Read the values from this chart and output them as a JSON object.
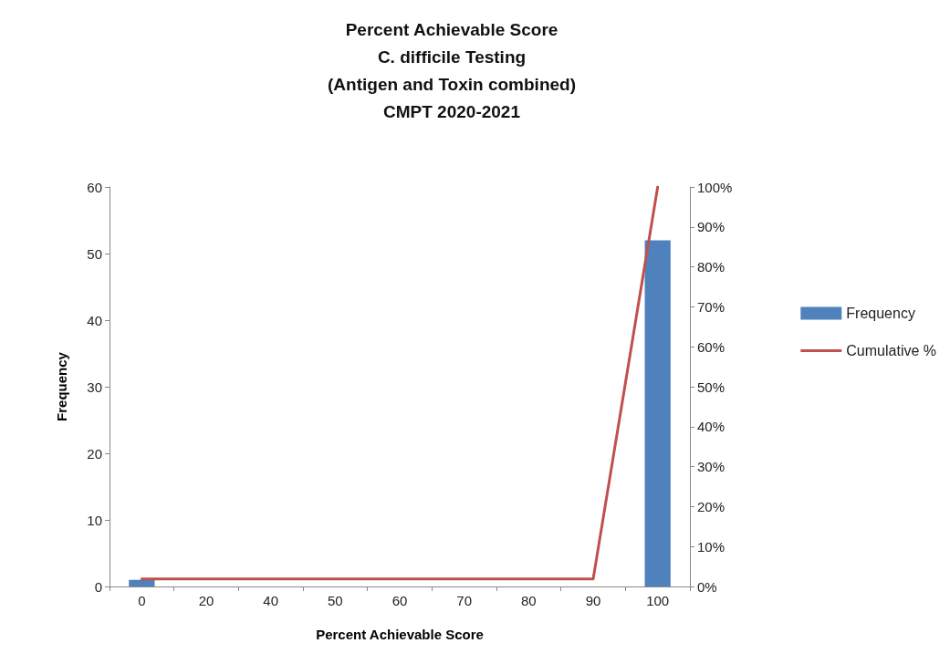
{
  "chart_data": {
    "type": "bar",
    "title": "Percent Achievable Score\nC. difficile Testing\n(Antigen and Toxin combined)\nCMPT 2020-2021",
    "xlabel": "Percent Achievable Score",
    "ylabel": "Frequency",
    "categories": [
      "0",
      "20",
      "40",
      "50",
      "60",
      "70",
      "80",
      "90",
      "100"
    ],
    "series": [
      {
        "name": "Frequency",
        "color": "#4f81bd",
        "values": [
          1,
          0,
          0,
          0,
          0,
          0,
          0,
          0,
          52
        ]
      },
      {
        "name": "Cumulative %",
        "type": "line",
        "axis": "y2",
        "color": "#c0504d",
        "values": [
          1.9,
          1.9,
          1.9,
          1.9,
          1.9,
          1.9,
          1.9,
          1.9,
          100
        ]
      }
    ],
    "ylim": [
      0,
      60
    ],
    "yticks": [
      0,
      10,
      20,
      30,
      40,
      50,
      60
    ],
    "y2lim": [
      0,
      100
    ],
    "y2ticks": [
      {
        "value": 0,
        "label": "0%"
      },
      {
        "value": 10,
        "label": "10%"
      },
      {
        "value": 20,
        "label": "20%"
      },
      {
        "value": 30,
        "label": "30%"
      },
      {
        "value": 40,
        "label": "40%"
      },
      {
        "value": 50,
        "label": "50%"
      },
      {
        "value": 60,
        "label": "60%"
      },
      {
        "value": 70,
        "label": "70%"
      },
      {
        "value": 80,
        "label": "80%"
      },
      {
        "value": 90,
        "label": "90%"
      },
      {
        "value": 100,
        "label": "100%"
      }
    ],
    "grid": false,
    "legend": "right",
    "marker": "none",
    "line_style": "solid"
  }
}
